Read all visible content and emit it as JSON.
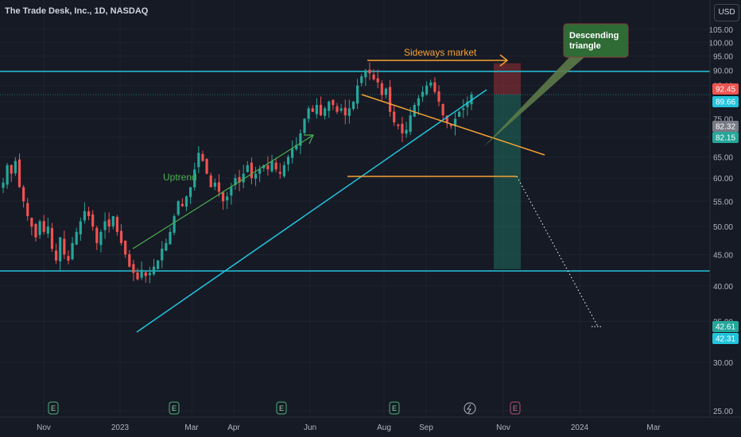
{
  "header": {
    "title": "The Trade Desk, Inc., 1D, NASDAQ",
    "currency": "USD"
  },
  "colors": {
    "background": "#161a25",
    "up_candle": "#26a69a",
    "down_candle": "#ef5350",
    "support_resistance": "#22c4dc",
    "triangle": "#f7a233",
    "uptrend_arrow": "#4caf50",
    "callout_fill": "#2e6b35",
    "target_zone": "#1f6d5d",
    "stop_zone": "#8e2f36"
  },
  "chart_data": {
    "type": "candlestick",
    "title": "The Trade Desk, Inc., 1D, NASDAQ",
    "y_scale": "log",
    "ylim": [
      24,
      110
    ],
    "y_ticks": [
      "105.00",
      "100.00",
      "95.00",
      "90.00",
      "85.00",
      "80.00",
      "75.00",
      "70.00",
      "65.00",
      "60.00",
      "55.00",
      "50.00",
      "45.00",
      "40.00",
      "35.00",
      "30.00",
      "25.00"
    ],
    "x_ticks": [
      "Nov",
      "2023",
      "Mar",
      "Apr",
      "Jun",
      "Aug",
      "Sep",
      "Nov",
      "2024",
      "Mar"
    ],
    "price_labels": [
      {
        "text": "92.45",
        "color": "#ef5350"
      },
      {
        "text": "89.66",
        "color": "#22c4dc"
      },
      {
        "text": "82.32",
        "color": "#787b86"
      },
      {
        "text": "82.15",
        "color": "#26a69a"
      },
      {
        "text": "42.61",
        "color": "#26a69a"
      },
      {
        "text": "42.31",
        "color": "#22c4dc"
      }
    ],
    "horizontal_levels": [
      89.66,
      42.31
    ],
    "closes": [
      59,
      63,
      61,
      64,
      58,
      55,
      52,
      50,
      48,
      51,
      49,
      50,
      46,
      44,
      48,
      45,
      44,
      47,
      49,
      51,
      53,
      52,
      50,
      47,
      49,
      51,
      50,
      52,
      49,
      47,
      45,
      43,
      42,
      41,
      42.5,
      41.5,
      42,
      43,
      44,
      46,
      47,
      49,
      52,
      55,
      54,
      56,
      58,
      62,
      66,
      64,
      61,
      58,
      59,
      57,
      55,
      56,
      58,
      60,
      59,
      61,
      63,
      60,
      61,
      62,
      63,
      62,
      64,
      62,
      61,
      63,
      65,
      67,
      68,
      71,
      75,
      78,
      77,
      79,
      76,
      78,
      80,
      79,
      77,
      78,
      76,
      78,
      80,
      85,
      88,
      90,
      89,
      87,
      86,
      82,
      84,
      77,
      74,
      73,
      71,
      72,
      76,
      79,
      81,
      83,
      85,
      86,
      83,
      80,
      76,
      74,
      73,
      75,
      77,
      78,
      80,
      82.15
    ],
    "annotations": [
      "Uptrend",
      "Sideways market",
      "Descending\ntriangle"
    ],
    "events": [
      "E",
      "E",
      "E",
      "E",
      "E"
    ]
  },
  "annotations": {
    "uptrend": "Uptrend",
    "sideways": "Sideways market",
    "triangle_line1": "Descending",
    "triangle_line2": "triangle"
  }
}
